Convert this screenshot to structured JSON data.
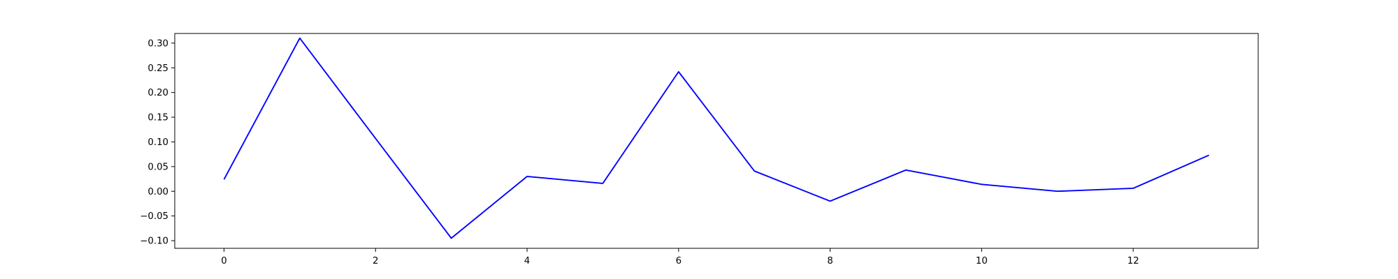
{
  "chart_data": {
    "type": "line",
    "title": "",
    "xlabel": "",
    "ylabel": "",
    "xlim": [
      -0.65,
      13.65
    ],
    "ylim": [
      -0.1155,
      0.3195
    ],
    "x_ticks": [
      0,
      2,
      4,
      6,
      8,
      10,
      12
    ],
    "x_tick_labels": [
      "0",
      "2",
      "4",
      "6",
      "8",
      "10",
      "12"
    ],
    "y_ticks": [
      -0.1,
      -0.05,
      0.0,
      0.05,
      0.1,
      0.15,
      0.2,
      0.25,
      0.3
    ],
    "y_tick_labels": [
      "−0.10",
      "−0.05",
      "0.00",
      "0.05",
      "0.10",
      "0.15",
      "0.20",
      "0.25",
      "0.30"
    ],
    "grid": false,
    "legend": "none",
    "series": [
      {
        "color": "#0000ff",
        "x": [
          0,
          1,
          2,
          3,
          4,
          5,
          6,
          7,
          8,
          9,
          10,
          11,
          12,
          13
        ],
        "values": [
          0.024,
          0.31,
          0.107,
          -0.095,
          0.03,
          0.016,
          0.242,
          0.041,
          -0.02,
          0.043,
          0.014,
          0.0,
          0.006,
          0.073
        ]
      }
    ]
  }
}
